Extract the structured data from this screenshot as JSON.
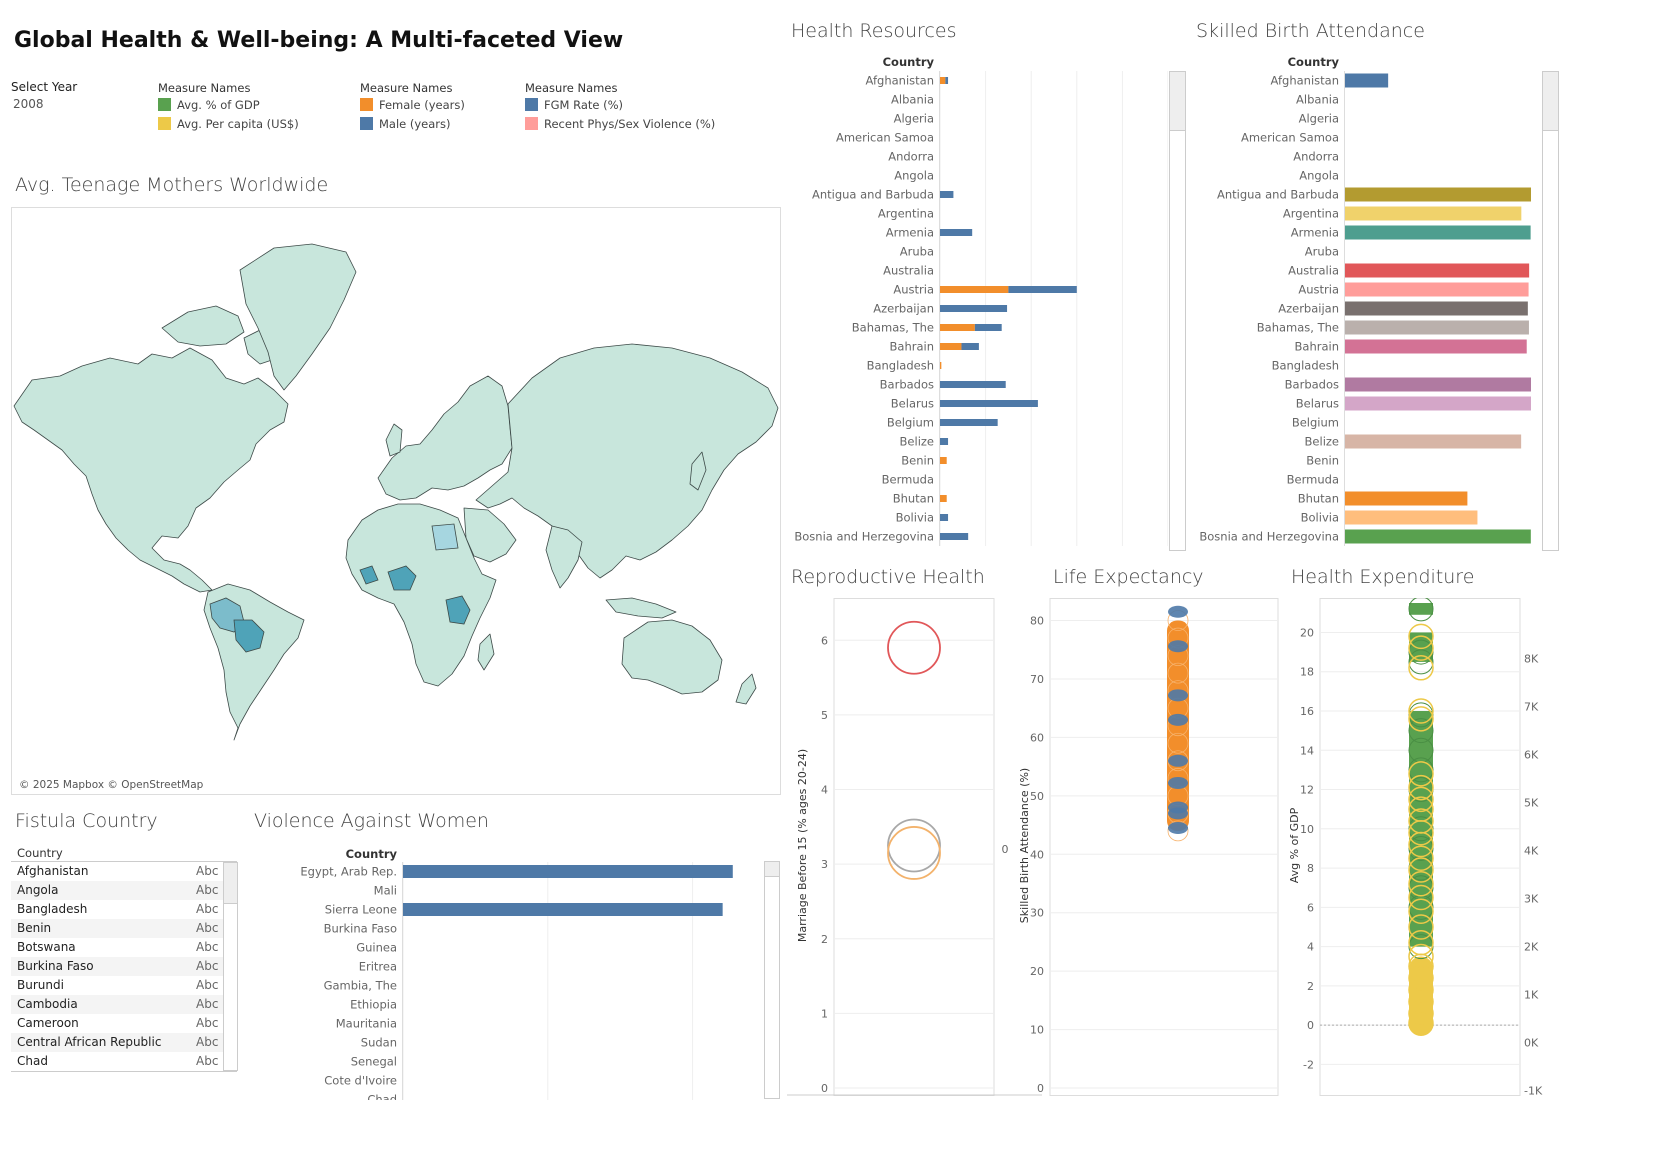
{
  "dashboard": {
    "title": "Global Health & Well-being: A Multi-faceted View",
    "filter": {
      "label": "Select Year",
      "value": "2008"
    }
  },
  "legends": [
    {
      "head": "Measure Names",
      "items": [
        {
          "label": "Avg. % of GDP",
          "color": "#59a14f"
        },
        {
          "label": "Avg. Per capita (US$)",
          "color": "#edc948"
        }
      ]
    },
    {
      "head": "Measure Names",
      "items": [
        {
          "label": "Female (years)",
          "color": "#f28e2b"
        },
        {
          "label": "Male (years)",
          "color": "#4e79a7"
        }
      ]
    },
    {
      "head": "Measure Names",
      "items": [
        {
          "label": "FGM Rate (%)",
          "color": "#4e79a7"
        },
        {
          "label": "Recent Phys/Sex Violence (%)",
          "color": "#ff9d9a"
        }
      ]
    }
  ],
  "map": {
    "title": "Avg. Teenage Mothers Worldwide",
    "attribution": "© 2025 Mapbox © OpenStreetMap",
    "colors": {
      "land": "#c8e6dc",
      "border": "#3d4a48",
      "highlight": "#7cbccb",
      "dark": "#4fa3b8",
      "ocean": "#ffffff"
    }
  },
  "fistula": {
    "title": "Fistula Country",
    "column": "Country",
    "rows": [
      {
        "country": "Afghanistan",
        "abc": "Abc"
      },
      {
        "country": "Angola",
        "abc": "Abc"
      },
      {
        "country": "Bangladesh",
        "abc": "Abc"
      },
      {
        "country": "Benin",
        "abc": "Abc"
      },
      {
        "country": "Botswana",
        "abc": "Abc"
      },
      {
        "country": "Burkina Faso",
        "abc": "Abc"
      },
      {
        "country": "Burundi",
        "abc": "Abc"
      },
      {
        "country": "Cambodia",
        "abc": "Abc"
      },
      {
        "country": "Cameroon",
        "abc": "Abc"
      },
      {
        "country": "Central African Republic",
        "abc": "Abc"
      },
      {
        "country": "Chad",
        "abc": "Abc"
      }
    ]
  },
  "chart_data": [
    {
      "id": "violence",
      "type": "bar",
      "title": "Violence Against Women",
      "column_header": "Country",
      "categories": [
        "Egypt, Arab Rep.",
        "Mali",
        "Sierra Leone",
        "Burkina Faso",
        "Guinea",
        "Eritrea",
        "Gambia, The",
        "Ethiopia",
        "Mauritania",
        "Sudan",
        "Senegal",
        "Cote d'Ivoire",
        "Chad"
      ],
      "values": [
        91.1,
        0,
        88.3,
        0,
        0,
        0,
        0,
        0,
        0,
        0,
        0,
        0,
        0
      ],
      "xlim": [
        0,
        100
      ],
      "color": "#4e79a7"
    },
    {
      "id": "health_resources",
      "type": "bar",
      "stacked": true,
      "title": "Health Resources",
      "column_header": "Country",
      "categories": [
        "Afghanistan",
        "Albania",
        "Algeria",
        "American Samoa",
        "Andorra",
        "Angola",
        "Antigua and Barbuda",
        "Argentina",
        "Armenia",
        "Aruba",
        "Australia",
        "Austria",
        "Azerbaijan",
        "Bahamas, The",
        "Bahrain",
        "Bangladesh",
        "Barbados",
        "Belarus",
        "Belgium",
        "Belize",
        "Benin",
        "Bermuda",
        "Bhutan",
        "Bolivia",
        "Bosnia and Herzegovina"
      ],
      "series": [
        {
          "name": "Female (years)",
          "color": "#f28e2b",
          "values": [
            0.4,
            0,
            0,
            0,
            0,
            0,
            0,
            0,
            0,
            0,
            0,
            5.1,
            0,
            2.6,
            1.6,
            0.1,
            0,
            0,
            0,
            0,
            0.5,
            0,
            0.5,
            0,
            0
          ]
        },
        {
          "name": "Male (years)",
          "color": "#4e79a7",
          "values": [
            0.2,
            0,
            0,
            0,
            0,
            0,
            1.0,
            0,
            2.4,
            0,
            0,
            5.1,
            5.0,
            2.0,
            1.3,
            0,
            4.9,
            7.3,
            4.3,
            0.6,
            0,
            0,
            0,
            0.6,
            2.1
          ]
        }
      ],
      "xlim": [
        0,
        17
      ]
    },
    {
      "id": "skilled_birth",
      "type": "bar",
      "title": "Skilled Birth Attendance",
      "column_header": "Country",
      "categories": [
        "Afghanistan",
        "Albania",
        "Algeria",
        "American Samoa",
        "Andorra",
        "Angola",
        "Antigua and Barbuda",
        "Argentina",
        "Armenia",
        "Aruba",
        "Australia",
        "Austria",
        "Azerbaijan",
        "Bahamas, The",
        "Bahrain",
        "Bangladesh",
        "Barbados",
        "Belarus",
        "Belgium",
        "Belize",
        "Benin",
        "Bermuda",
        "Bhutan",
        "Bolivia",
        "Bosnia and Herzegovina"
      ],
      "values": [
        23.2,
        0,
        0,
        0,
        0,
        0,
        100,
        94.8,
        99.8,
        0,
        99.0,
        98.7,
        98.3,
        98.9,
        97.7,
        0,
        100,
        100,
        0,
        94.7,
        0,
        0,
        65.8,
        71.2,
        99.9
      ],
      "colors": [
        "#4e79a7",
        "",
        "",
        "",
        "",
        "",
        "#b39b30",
        "#f0d26b",
        "#4e9e8f",
        "",
        "#e15759",
        "#ff9d9a",
        "#79706e",
        "#bab0ac",
        "#d37295",
        "",
        "#b07aa1",
        "#d4a6c8",
        "",
        "#d7b5a6",
        "",
        "",
        "#f28e2b",
        "#ffbe7d",
        "#59a14f"
      ],
      "xlim": [
        0,
        100
      ]
    },
    {
      "id": "reproductive",
      "type": "scatter",
      "title": "Reproductive Health",
      "ylabel": "Marriage Before 15 (% ages 20-24)",
      "ylim": [
        0,
        6.5
      ],
      "yticks": [
        0,
        1,
        2,
        3,
        4,
        5,
        6
      ],
      "right_label": "0",
      "points": [
        {
          "y": 5.9,
          "color": "#e15759"
        },
        {
          "y": 3.25,
          "color": "#a8a8a8"
        },
        {
          "y": 3.15,
          "color": "#f3b26b"
        }
      ]
    },
    {
      "id": "life_expectancy",
      "type": "scatter",
      "title": "Life Expectancy",
      "ylabel": "Skilled Birth Attendance (%)",
      "ylim": [
        0,
        83
      ],
      "yticks": [
        0,
        10,
        20,
        30,
        40,
        50,
        60,
        70,
        80
      ],
      "series": [
        {
          "name": "Female (years)",
          "color": "#f28e2b",
          "y_range": [
            44,
            80
          ]
        },
        {
          "name": "Male (years)",
          "color": "#4e79a7",
          "values": [
            81.5,
            75.6,
            67.2,
            63.0,
            56.0,
            52.2,
            48.0,
            47.0,
            44.5
          ]
        }
      ]
    },
    {
      "id": "health_expenditure",
      "type": "scatter",
      "title": "Health Expenditure",
      "ylabel": "Avg % of GDP",
      "ylim": [
        -3.2,
        21.5
      ],
      "yticks": [
        -2,
        0,
        2,
        4,
        6,
        8,
        10,
        12,
        14,
        16,
        18,
        20
      ],
      "y2ticks": [
        "-1K",
        "0K",
        "1K",
        "2K",
        "3K",
        "4K",
        "5K",
        "6K",
        "7K",
        "8K"
      ],
      "series": [
        {
          "name": "Avg. % of GDP",
          "color": "#59a14f",
          "values": [
            21.2,
            19.0,
            18.5,
            15.8,
            15.0,
            14.0,
            13.0,
            12.0,
            11.0,
            10.0,
            9.0,
            8.0,
            7.0,
            6.0,
            5.0,
            4.0
          ]
        },
        {
          "name": "Avg. Per capita (US$)",
          "color": "#edc948",
          "values": [
            19.8,
            19.2,
            18.2,
            16.0,
            15.6,
            12.8,
            12.1,
            11.5,
            11.0,
            10.4,
            9.8,
            9.2,
            8.5,
            7.9,
            7.2,
            6.5,
            5.8,
            5.0,
            4.2,
            3.5,
            3.0,
            2.4,
            1.8,
            1.2,
            0.6,
            0.1
          ]
        }
      ]
    }
  ]
}
